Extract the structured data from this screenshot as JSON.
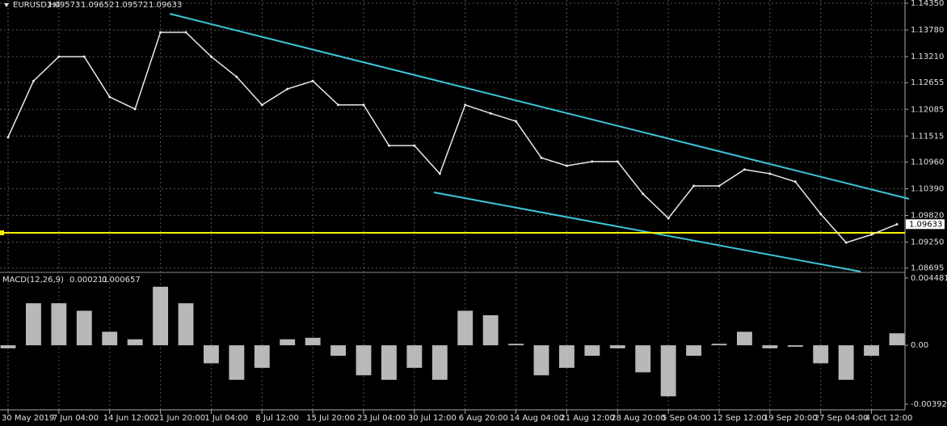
{
  "chart_data": [
    {
      "type": "line",
      "title": "EURUSD,H4",
      "ohlc": [
        1.09573,
        1.09652,
        1.09572,
        1.09633
      ],
      "current_price": 1.09633,
      "color": "#e8e8e8",
      "grid": true,
      "categories": [
        "30 May 2019",
        null,
        "7 Jun 04:00",
        null,
        "14 Jun 12:00",
        null,
        "21 Jun 20:00",
        null,
        "1 Jul 04:00",
        null,
        "8 Jul 12:00",
        null,
        "15 Jul 20:00",
        null,
        "23 Jul 04:00",
        null,
        "30 Jul 12:00",
        null,
        "6 Aug 20:00",
        null,
        "14 Aug 04:00",
        null,
        "21 Aug 12:00",
        null,
        "28 Aug 20:00",
        null,
        "5 Sep 04:00",
        null,
        "12 Sep 12:00",
        null,
        "19 Sep 20:00",
        null,
        "27 Sep 04:00",
        null,
        "4 Oct 12:00",
        null
      ],
      "values": [
        1.1149,
        1.1269,
        1.1321,
        1.1321,
        1.1235,
        1.1209,
        1.1373,
        1.1373,
        1.1321,
        1.1278,
        1.1218,
        1.1252,
        1.1269,
        1.1218,
        1.1218,
        1.1131,
        1.1131,
        1.1071,
        1.1218,
        1.12,
        1.1183,
        1.1105,
        1.1088,
        1.1097,
        1.1097,
        1.1028,
        1.0976,
        1.1045,
        1.1045,
        1.108,
        1.1071,
        1.1054,
        1.0985,
        1.0924,
        1.0941,
        1.0963
      ],
      "ylim": [
        1.0862,
        1.1442
      ],
      "yticks": [
        {
          "value": 1.1435,
          "label": "1.14350"
        },
        {
          "value": 1.1378,
          "label": "1.13780"
        },
        {
          "value": 1.1321,
          "label": "1.13210"
        },
        1.12655,
        1.12085,
        1.11515,
        {
          "value": 1.1096,
          "label": "1.10960"
        },
        {
          "value": 1.1039,
          "label": "1.10390"
        },
        {
          "value": 1.0982,
          "label": "1.09820"
        },
        {
          "value": 1.0925,
          "label": "1.09250"
        },
        1.08695
      ]
    },
    {
      "type": "bar",
      "title": "MACD(12,26,9)",
      "readings": [
        0.000211,
        0.000657
      ],
      "color": "#d8d8d8",
      "values": [
        -0.0002,
        0.0028,
        0.0028,
        0.0023,
        0.0009,
        0.0004,
        0.0039,
        0.0028,
        -0.0012,
        -0.0023,
        -0.0015,
        0.0004,
        0.0005,
        -0.0007,
        -0.002,
        -0.0023,
        -0.0015,
        -0.0023,
        0.0023,
        0.002,
        0.0001,
        -0.002,
        -0.0015,
        -0.0007,
        -0.0002,
        -0.0018,
        -0.0034,
        -0.0007,
        0.0001,
        0.0009,
        -0.0002,
        -0.0001,
        -0.0012,
        -0.0023,
        -0.0007,
        0.0008
      ],
      "ylim": [
        -0.0043,
        0.0048
      ],
      "yticks": [
        0.004481,
        {
          "value": 0,
          "label": "0.00"
        },
        -0.003925
      ]
    }
  ]
}
